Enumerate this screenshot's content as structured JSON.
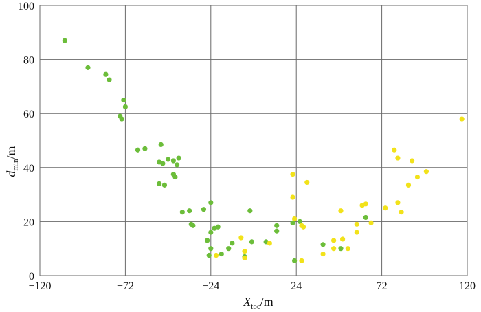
{
  "chart_data": {
    "type": "scatter",
    "x_ticks": [
      "−120",
      "−72",
      "−24",
      "24",
      "72",
      "120"
    ],
    "y_ticks": [
      "0",
      "20",
      "40",
      "60",
      "80",
      "100"
    ],
    "xlim": [
      -120,
      120
    ],
    "ylim": [
      0,
      100
    ],
    "xlabel": {
      "main": "X",
      "sub": "toc",
      "unit": "/m"
    },
    "ylabel": {
      "main": "d",
      "sub": "min",
      "unit": "/m"
    },
    "grid": "major gridlines on both axes",
    "series": [
      {
        "color": "#6cbd3a",
        "points": [
          [
            -106,
            87
          ],
          [
            -93,
            77
          ],
          [
            -83,
            74.5
          ],
          [
            -81,
            72.5
          ],
          [
            -73,
            65
          ],
          [
            -72,
            62.5
          ],
          [
            -75,
            59
          ],
          [
            -74,
            58
          ],
          [
            -65,
            46.5
          ],
          [
            -61,
            47
          ],
          [
            -52,
            48.5
          ],
          [
            -53,
            42
          ],
          [
            -51,
            41.5
          ],
          [
            -48,
            43
          ],
          [
            -45,
            42.5
          ],
          [
            -42,
            43.5
          ],
          [
            -43,
            41
          ],
          [
            -45,
            37.5
          ],
          [
            -44,
            36.5
          ],
          [
            -53,
            34
          ],
          [
            -50,
            33.5
          ],
          [
            -40,
            23.5
          ],
          [
            -36,
            24
          ],
          [
            -35,
            19
          ],
          [
            -34,
            18.5
          ],
          [
            -28,
            24.5
          ],
          [
            -24,
            27
          ],
          [
            -24,
            16
          ],
          [
            -22,
            17.5
          ],
          [
            -20,
            18
          ],
          [
            -26,
            13
          ],
          [
            -24,
            10
          ],
          [
            -18,
            8
          ],
          [
            -25,
            7.5
          ],
          [
            -14,
            10
          ],
          [
            -12,
            12
          ],
          [
            -5,
            7
          ],
          [
            -2,
            24
          ],
          [
            -1,
            12.5
          ],
          [
            7,
            12.5
          ],
          [
            13,
            16.5
          ],
          [
            13,
            18.5
          ],
          [
            22,
            19.5
          ],
          [
            26,
            20
          ],
          [
            23,
            5.5
          ],
          [
            39,
            11.5
          ],
          [
            49,
            10
          ],
          [
            63,
            21.5
          ]
        ]
      },
      {
        "color": "#f2e21a",
        "points": [
          [
            22,
            37.5
          ],
          [
            22,
            29
          ],
          [
            23,
            21
          ],
          [
            27,
            18.5
          ],
          [
            28,
            18
          ],
          [
            30,
            34.5
          ],
          [
            -21,
            7.5
          ],
          [
            -7,
            14
          ],
          [
            -5,
            9
          ],
          [
            -5,
            6.5
          ],
          [
            9,
            12
          ],
          [
            27,
            5.5
          ],
          [
            39,
            8
          ],
          [
            45,
            13
          ],
          [
            45,
            10
          ],
          [
            50,
            13.5
          ],
          [
            49,
            24
          ],
          [
            53,
            10
          ],
          [
            58,
            16
          ],
          [
            58,
            19
          ],
          [
            61,
            26
          ],
          [
            63,
            26.5
          ],
          [
            66,
            19.5
          ],
          [
            74,
            25
          ],
          [
            79,
            46.5
          ],
          [
            81,
            43.5
          ],
          [
            81,
            27
          ],
          [
            83,
            23.5
          ],
          [
            87,
            33.5
          ],
          [
            89,
            42.5
          ],
          [
            92,
            36.5
          ],
          [
            97,
            38.5
          ],
          [
            117,
            58
          ]
        ]
      }
    ]
  }
}
